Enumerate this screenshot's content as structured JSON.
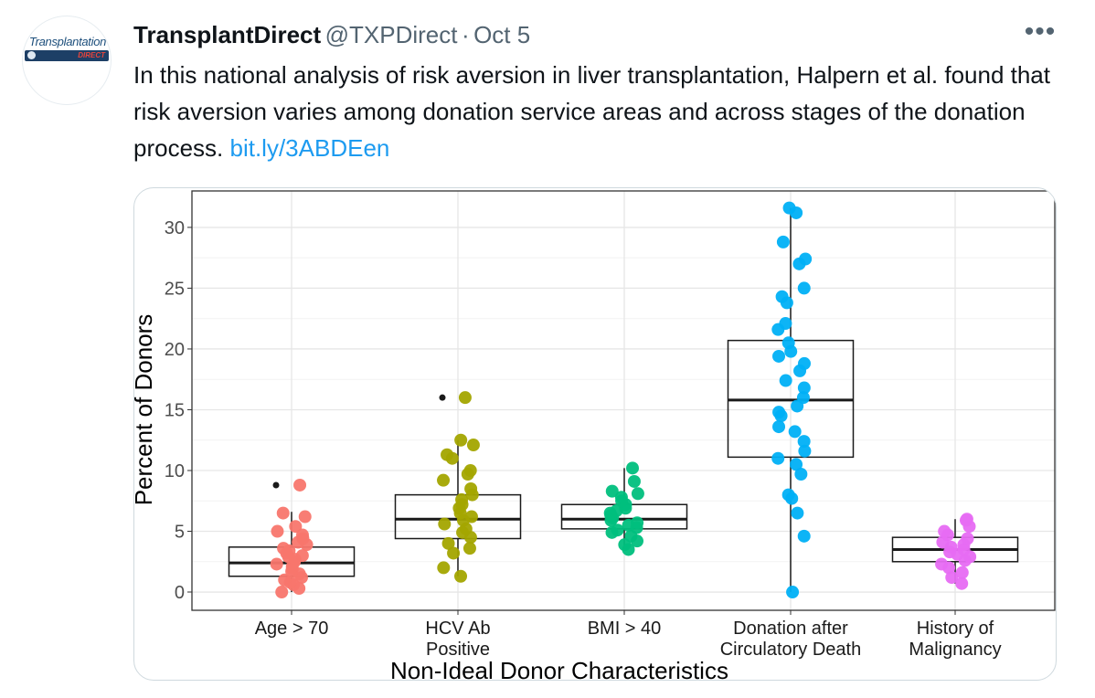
{
  "account": {
    "avatar_text_top": "Transplantation",
    "avatar_text_bottom": "DIRECT",
    "display_name": "TransplantDirect",
    "handle": "@TXPDirect",
    "separator": "·",
    "date": "Oct 5",
    "more_label": "•••"
  },
  "tweet": {
    "text": "In this national analysis of risk aversion in liver transplantation, Halpern et al. found that risk aversion varies among donation service areas and across stages of the donation process.",
    "link": "bit.ly/3ABDEen"
  },
  "chart_data": {
    "type": "box",
    "xlabel": "Non-Ideal Donor Characteristics",
    "ylabel": "Percent of Donors",
    "ylim": [
      -1.5,
      33
    ],
    "yticks": [
      0,
      5,
      10,
      15,
      20,
      25,
      30
    ],
    "grid": true,
    "categories": [
      {
        "label1": "Age > 70",
        "label2": "",
        "color": "#f8766d",
        "box": {
          "q1": 1.3,
          "median": 2.4,
          "q3": 3.7,
          "whisker_low": 0,
          "whisker_high": 6.6,
          "outliers": [
            8.8
          ]
        },
        "points": [
          0,
          0.3,
          0.6,
          0.8,
          1.0,
          1.2,
          1.5,
          1.7,
          1.9,
          2.1,
          2.3,
          2.5,
          2.7,
          2.9,
          3.0,
          3.2,
          3.4,
          3.6,
          3.9,
          4.1,
          4.4,
          4.7,
          5.0,
          5.4,
          6.2,
          6.5,
          8.8
        ]
      },
      {
        "label1": "HCV Ab",
        "label2": "Positive",
        "color": "#a3a500",
        "box": {
          "q1": 4.4,
          "median": 6.0,
          "q3": 8.0,
          "whisker_low": 1.3,
          "whisker_high": 12.5,
          "outliers": [
            16.0
          ]
        },
        "points": [
          1.3,
          2.0,
          3.2,
          3.6,
          4.0,
          4.5,
          4.9,
          5.2,
          5.6,
          5.9,
          6.2,
          6.5,
          6.9,
          7.2,
          7.6,
          8.0,
          8.5,
          9.2,
          9.7,
          10.0,
          11.0,
          11.3,
          12.1,
          12.5,
          16.0
        ]
      },
      {
        "label1": "BMI > 40",
        "label2": "",
        "color": "#00bf7d",
        "box": {
          "q1": 5.2,
          "median": 6.0,
          "q3": 7.2,
          "whisker_low": 3.5,
          "whisker_high": 10.2,
          "outliers": []
        },
        "points": [
          3.5,
          3.9,
          4.2,
          4.6,
          4.9,
          5.1,
          5.3,
          5.5,
          5.7,
          5.9,
          6.1,
          6.3,
          6.5,
          6.7,
          6.9,
          7.2,
          7.5,
          7.8,
          8.1,
          8.3,
          9.1,
          10.2
        ]
      },
      {
        "label1": "Donation after",
        "label2": "Circulatory Death",
        "color": "#00b0f6",
        "box": {
          "q1": 11.1,
          "median": 15.8,
          "q3": 20.7,
          "whisker_low": 0,
          "whisker_high": 31.6,
          "outliers": []
        },
        "points": [
          0,
          4.6,
          6.5,
          7.7,
          8.0,
          9.7,
          10.5,
          11.0,
          11.6,
          12.4,
          13.2,
          13.6,
          14.5,
          14.8,
          15.3,
          16.0,
          16.8,
          17.4,
          18.2,
          18.8,
          19.4,
          19.8,
          20.5,
          21.6,
          22.1,
          23.8,
          24.3,
          25.0,
          27.0,
          27.4,
          28.8,
          31.2,
          31.6
        ]
      },
      {
        "label1": "History of",
        "label2": "Malignancy",
        "color": "#e76bf3",
        "box": {
          "q1": 2.5,
          "median": 3.5,
          "q3": 4.5,
          "whisker_low": 0.7,
          "whisker_high": 6.0,
          "outliers": []
        },
        "points": [
          0.7,
          1.2,
          1.6,
          2.0,
          2.3,
          2.6,
          2.9,
          3.1,
          3.3,
          3.5,
          3.7,
          3.9,
          4.1,
          4.4,
          4.7,
          5.0,
          5.4,
          5.9,
          6.0
        ]
      }
    ]
  }
}
